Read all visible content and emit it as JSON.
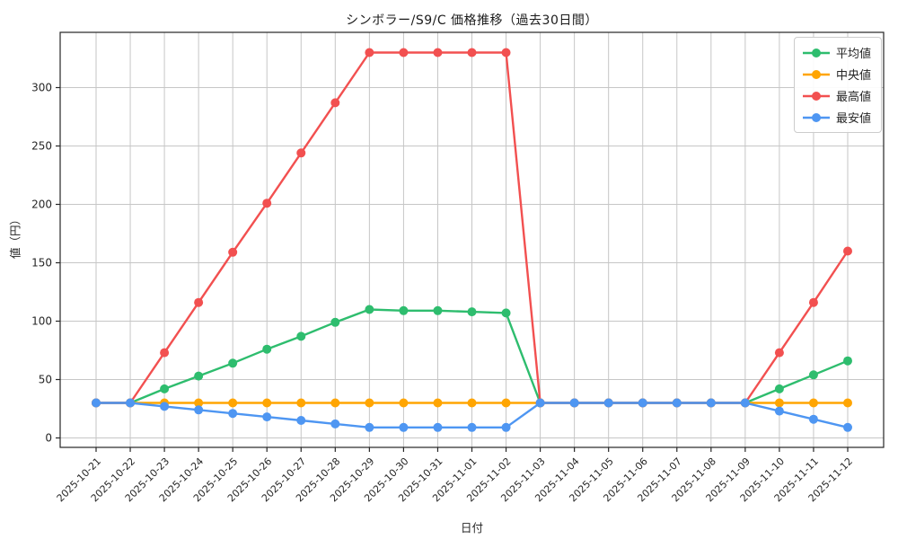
{
  "figure": {
    "background": "#ffffff",
    "grid_color": "#c6c6c6",
    "spine_color": "#262626",
    "tick_color": "#262626",
    "text_color": "#262626"
  },
  "chart_data": {
    "type": "line",
    "title": "シンボラー/S9/C 価格推移（過去30日間）",
    "xlabel": "日付",
    "ylabel": "値（円）",
    "grid": true,
    "legend_position": "top-right",
    "yticks": [
      0,
      50,
      100,
      150,
      200,
      250,
      300
    ],
    "ylim": [
      -8,
      347
    ],
    "categories": [
      "2025-10-21",
      "2025-10-22",
      "2025-10-23",
      "2025-10-24",
      "2025-10-25",
      "2025-10-26",
      "2025-10-27",
      "2025-10-28",
      "2025-10-29",
      "2025-10-30",
      "2025-10-31",
      "2025-11-01",
      "2025-11-02",
      "2025-11-03",
      "2025-11-04",
      "2025-11-05",
      "2025-11-06",
      "2025-11-07",
      "2025-11-08",
      "2025-11-09",
      "2025-11-10",
      "2025-11-11",
      "2025-11-12"
    ],
    "series": [
      {
        "key": "average",
        "name": "平均値",
        "color": "#2ebd6e",
        "values": [
          30,
          30,
          42,
          53,
          64,
          76,
          87,
          99,
          110,
          109,
          109,
          108,
          107,
          30,
          30,
          30,
          30,
          30,
          30,
          30,
          42,
          54,
          66
        ]
      },
      {
        "key": "median",
        "name": "中央値",
        "color": "#ffa502",
        "values": [
          30,
          30,
          30,
          30,
          30,
          30,
          30,
          30,
          30,
          30,
          30,
          30,
          30,
          30,
          30,
          30,
          30,
          30,
          30,
          30,
          30,
          30,
          30
        ]
      },
      {
        "key": "max",
        "name": "最高値",
        "color": "#f25050",
        "values": [
          30,
          30,
          73,
          116,
          159,
          201,
          244,
          287,
          330,
          330,
          330,
          330,
          330,
          30,
          30,
          30,
          30,
          30,
          30,
          30,
          73,
          116,
          160
        ]
      },
      {
        "key": "min",
        "name": "最安値",
        "color": "#4e96f2",
        "values": [
          30,
          30,
          27,
          24,
          21,
          18,
          15,
          12,
          9,
          9,
          9,
          9,
          9,
          30,
          30,
          30,
          30,
          30,
          30,
          30,
          23,
          16,
          9
        ]
      }
    ]
  }
}
